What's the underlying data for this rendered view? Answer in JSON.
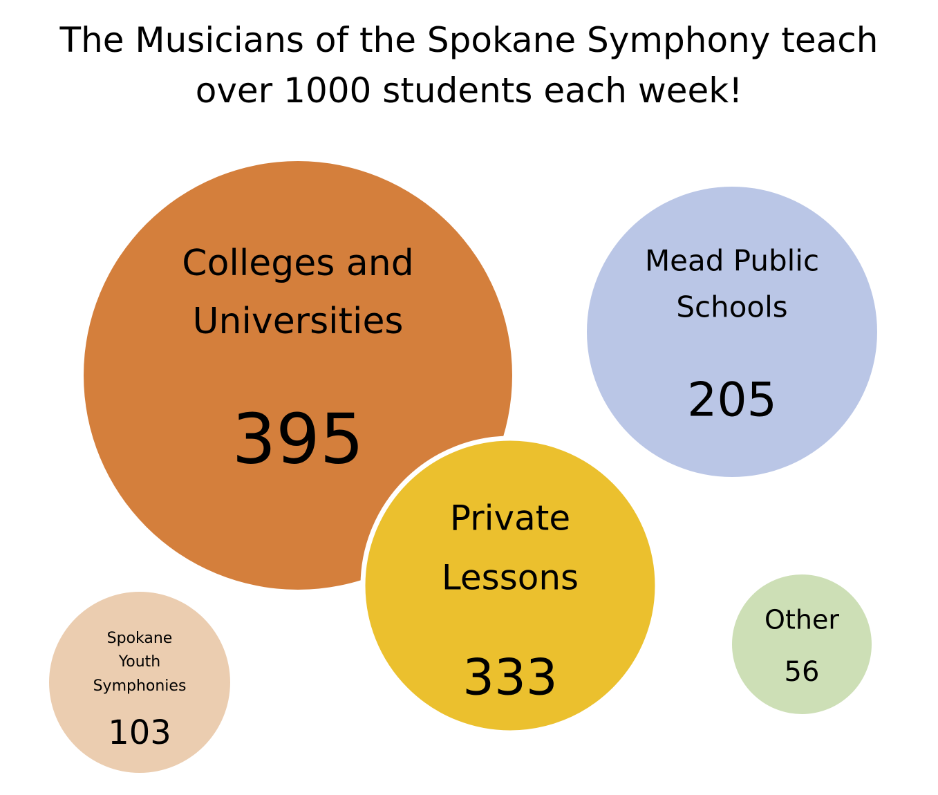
{
  "title": {
    "line1": "The Musicians of the Spokane Symphony teach",
    "line2": "over 1000 students each week!"
  },
  "chart_data": {
    "type": "bubble",
    "title": "The Musicians of the Spokane Symphony teach over 1000 students each week!",
    "unit": "students",
    "bubbles": [
      {
        "label_lines": [
          "Colleges and",
          "Universities"
        ],
        "value": 395,
        "value_text": "395",
        "color": "#D47F3C"
      },
      {
        "label_lines": [
          "Mead Public",
          "Schools"
        ],
        "value": 205,
        "value_text": "205",
        "color": "#BAC6E6"
      },
      {
        "label_lines": [
          "Private",
          "Lessons"
        ],
        "value": 333,
        "value_text": "333",
        "color": "#EBC02E"
      },
      {
        "label_lines": [
          "Spokane",
          "Youth",
          "Symphonies"
        ],
        "value": 103,
        "value_text": "103",
        "color": "#EBCDB0"
      },
      {
        "label_lines": [
          "Other"
        ],
        "value": 56,
        "value_text": "56",
        "color": "#CDDFB6"
      }
    ]
  }
}
